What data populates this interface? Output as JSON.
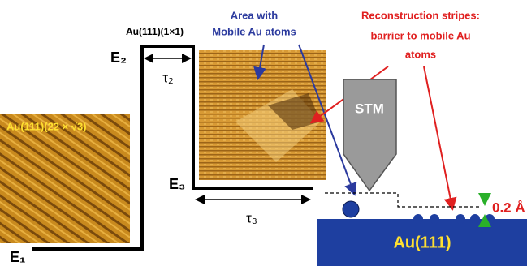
{
  "labels": {
    "e1": "E₁",
    "e2": "E₂",
    "e3": "E₃",
    "top_phase": "Au(111)(1×1)",
    "tau2": "τ₂",
    "tau3": "τ₃",
    "reconstructed": "Au(111)(22 × √3)",
    "area": [
      "Area with",
      "Mobile Au atoms"
    ],
    "stripes": [
      "Reconstruction  stripes:",
      "barrier to mobile Au",
      "atoms"
    ],
    "tip": "STM",
    "height": "0.2 Å",
    "substrate": "Au(111)"
  }
}
